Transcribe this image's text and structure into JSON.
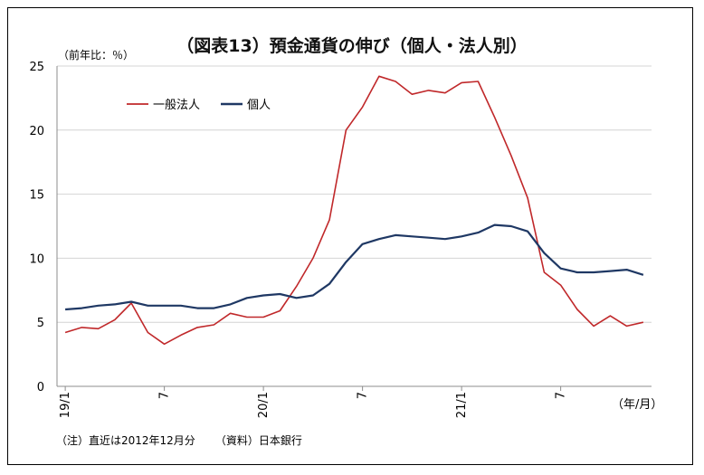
{
  "chart_data": {
    "type": "line",
    "title": "（図表13）預金通貨の伸び（個人・法人別）",
    "ylabel": "（前年比：％）",
    "xlabel": "（年/月）",
    "ylim": [
      0,
      25
    ],
    "yticks": [
      0,
      5,
      10,
      15,
      20,
      25
    ],
    "x_tick_labels": [
      {
        "index": 0,
        "label": "19/1"
      },
      {
        "index": 6,
        "label": "7"
      },
      {
        "index": 12,
        "label": "20/1"
      },
      {
        "index": 18,
        "label": "7"
      },
      {
        "index": 24,
        "label": "21/1"
      },
      {
        "index": 30,
        "label": "7"
      }
    ],
    "legend_position": "top-left",
    "grid": "horizontal",
    "series": [
      {
        "name": "一般法人",
        "color": "#c0282a",
        "values": [
          4.2,
          4.6,
          4.5,
          5.2,
          6.5,
          4.2,
          3.3,
          4.0,
          4.6,
          4.8,
          5.7,
          5.4,
          5.4,
          5.9,
          7.8,
          10.0,
          13.0,
          20.0,
          21.8,
          24.2,
          23.8,
          22.8,
          23.1,
          22.9,
          23.7,
          23.8,
          21.0,
          18.0,
          14.7,
          8.9,
          7.9,
          6.0,
          4.7,
          5.5,
          4.7,
          5.0
        ]
      },
      {
        "name": "個人",
        "color": "#1f3864",
        "values": [
          6.0,
          6.1,
          6.3,
          6.4,
          6.6,
          6.3,
          6.3,
          6.3,
          6.1,
          6.1,
          6.4,
          6.9,
          7.1,
          7.2,
          6.9,
          7.1,
          8.0,
          9.7,
          11.1,
          11.5,
          11.8,
          11.7,
          11.6,
          11.5,
          11.7,
          12.0,
          12.6,
          12.5,
          12.1,
          10.4,
          9.2,
          8.9,
          8.9,
          9.0,
          9.1,
          8.7
        ]
      }
    ]
  },
  "note": {
    "left": "（注）直近は2012年12月分",
    "right": "（資料）日本銀行"
  }
}
